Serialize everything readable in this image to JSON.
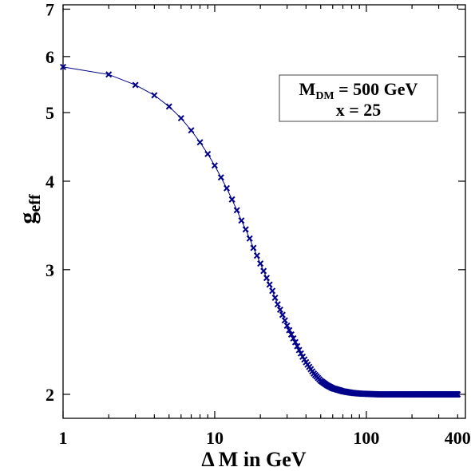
{
  "chart_data": {
    "type": "scatter",
    "xscale": "log",
    "yscale": "log",
    "xlim": [
      1,
      450
    ],
    "ylim": [
      1.85,
      7.1
    ],
    "xticks": [
      {
        "value": 1,
        "label": "1"
      },
      {
        "value": 10,
        "label": "10"
      },
      {
        "value": 100,
        "label": "100"
      },
      {
        "value": 400,
        "label": "400"
      }
    ],
    "yticks": [
      {
        "value": 2,
        "label": "2"
      },
      {
        "value": 3,
        "label": "3"
      },
      {
        "value": 4,
        "label": "4"
      },
      {
        "value": 5,
        "label": "5"
      },
      {
        "value": 6,
        "label": "6"
      },
      {
        "value": 7,
        "label": "7"
      }
    ],
    "xlabel": "Δ M in GeV",
    "ylabel": {
      "main": "g",
      "sub": "eff"
    },
    "annotation": {
      "line1_main": "M",
      "line1_sub": "DM",
      "line1_rest": " = 500 GeV",
      "line2": "x = 25"
    },
    "series": [
      {
        "marker": "x",
        "color": "#00008B",
        "x": [
          1,
          2,
          3,
          4,
          5,
          6,
          7,
          8,
          9,
          10,
          11,
          12,
          13,
          14,
          15,
          16,
          17,
          18,
          19,
          20,
          22,
          24,
          26,
          28,
          30,
          32,
          34,
          36,
          38,
          40,
          45,
          50,
          55,
          60,
          70,
          80,
          90,
          100,
          120,
          150,
          200,
          300,
          400
        ],
        "y": [
          5.8,
          5.66,
          5.47,
          5.29,
          5.1,
          4.91,
          4.72,
          4.54,
          4.37,
          4.21,
          4.05,
          3.91,
          3.77,
          3.64,
          3.52,
          3.42,
          3.32,
          3.22,
          3.14,
          3.06,
          2.92,
          2.8,
          2.68,
          2.59,
          2.5,
          2.43,
          2.37,
          2.31,
          2.26,
          2.22,
          2.14,
          2.09,
          2.06,
          2.04,
          2.02,
          2.01,
          2.005,
          2.003,
          2.0,
          2.0,
          2.0,
          2.0,
          2.0
        ]
      }
    ]
  }
}
